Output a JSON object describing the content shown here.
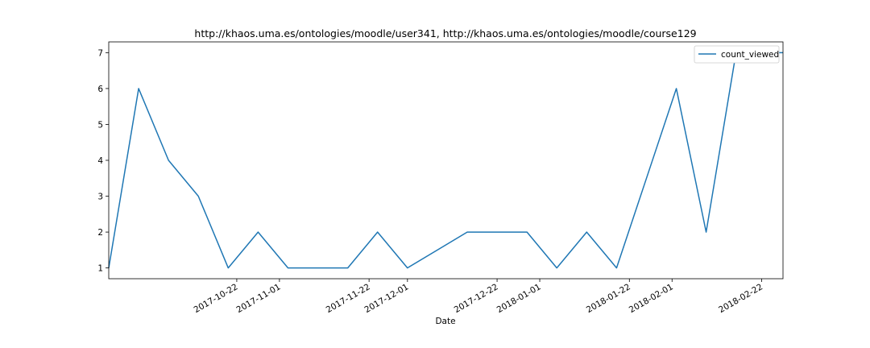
{
  "chart_data": {
    "type": "line",
    "title": "http://khaos.uma.es/ontologies/moodle/user341, http://khaos.uma.es/ontologies/moodle/course129",
    "xlabel": "Date",
    "ylabel": "",
    "xlim": [
      "2017-09-22",
      "2018-02-27"
    ],
    "ylim": [
      0.7,
      7.3
    ],
    "yticks": [
      1,
      2,
      3,
      4,
      5,
      6,
      7
    ],
    "xticks": [
      {
        "date": "2017-10-22",
        "label": "2017-10-22"
      },
      {
        "date": "2017-11-01",
        "label": "2017-11-01"
      },
      {
        "date": "2017-11-22",
        "label": "2017-11-22"
      },
      {
        "date": "2017-12-01",
        "label": "2017-12-01"
      },
      {
        "date": "2017-12-22",
        "label": "2017-12-22"
      },
      {
        "date": "2018-01-01",
        "label": "2018-01-01"
      },
      {
        "date": "2018-01-22",
        "label": "2018-01-22"
      },
      {
        "date": "2018-02-01",
        "label": "2018-02-01"
      },
      {
        "date": "2018-02-22",
        "label": "2018-02-22"
      }
    ],
    "legend": "top-right",
    "grid": false,
    "series": [
      {
        "name": "count_viewed",
        "color": "#1f77b4",
        "x": [
          "2017-09-22",
          "2017-09-29",
          "2017-10-06",
          "2017-10-13",
          "2017-10-20",
          "2017-10-27",
          "2017-11-03",
          "2017-11-10",
          "2017-11-17",
          "2017-11-24",
          "2017-12-01",
          "2017-12-08",
          "2017-12-15",
          "2017-12-22",
          "2017-12-29",
          "2018-01-05",
          "2018-01-12",
          "2018-01-19",
          "2018-01-26",
          "2018-02-02",
          "2018-02-09",
          "2018-02-16",
          "2018-02-23",
          "2018-02-27"
        ],
        "y": [
          1,
          6,
          4,
          3,
          1,
          2,
          1,
          1,
          1,
          2,
          1,
          1.5,
          2,
          2,
          2,
          1,
          2,
          1,
          3.5,
          6,
          2,
          7,
          7,
          7
        ]
      }
    ]
  }
}
